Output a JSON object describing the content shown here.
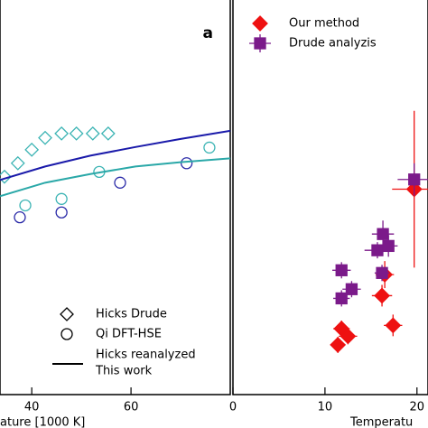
{
  "chart_data": [
    {
      "type": "scatter",
      "panel_label": "a",
      "xlabel": "ature [1000 K]",
      "xlim": [
        33.6,
        80
      ],
      "xticks": [
        40,
        60
      ],
      "ylim": [
        0,
        7.3
      ],
      "series": [
        {
          "name": "Hicks Drude",
          "marker": "diamond",
          "color": "#3cb4b4",
          "x": [
            34.5,
            37.2,
            40,
            42.7,
            46,
            49,
            52.3,
            55.4
          ],
          "values": [
            4.03,
            4.28,
            4.53,
            4.75,
            4.83,
            4.83,
            4.83,
            4.83
          ]
        },
        {
          "name": "Qi DFT-HSE",
          "marker": "circle",
          "color": "#3cb4b4",
          "point_colors": [
            "#3cb4b4",
            "#3cb4b4",
            "#3cb4b4",
            "#3cb4b4",
            "#2a2aa8",
            "#2a2aa8",
            "#2a2aa8",
            "#2a2aa8"
          ],
          "x": [
            38.7,
            46,
            53.6,
            75.8,
            37.6,
            46,
            57.8,
            71.2
          ],
          "values": [
            3.5,
            3.62,
            4.12,
            4.57,
            3.28,
            3.37,
            3.92,
            4.28
          ]
        },
        {
          "name": "Hicks reanalyzed",
          "marker": "line",
          "color": "#1a1aaa",
          "x": [
            33.6,
            42.7,
            51.8,
            60.9,
            70,
            80
          ],
          "values": [
            3.97,
            4.22,
            4.42,
            4.58,
            4.73,
            4.88
          ]
        },
        {
          "name": "This work",
          "marker": "line",
          "color": "#2aa8a8",
          "x": [
            33.6,
            42.7,
            51.8,
            60.9,
            70,
            80
          ],
          "values": [
            3.67,
            3.92,
            4.08,
            4.22,
            4.3,
            4.37
          ]
        }
      ]
    },
    {
      "type": "errorbar",
      "xlabel": "Temperatu",
      "xlim": [
        0,
        21.2
      ],
      "xticks": [
        0,
        10,
        20
      ],
      "ylim": [
        0,
        7.3
      ],
      "series": [
        {
          "name": "Our method",
          "marker": "diamond",
          "color": "#ee1111",
          "x": [
            11.4,
            11.8,
            12.5,
            17.4,
            16.2,
            16.5,
            19.7
          ],
          "values": [
            0.92,
            1.22,
            1.08,
            1.28,
            1.83,
            2.22,
            3.8
          ],
          "xerr": [
            0.8,
            0.9,
            1.0,
            1.0,
            1.1,
            1.0,
            2.4
          ],
          "yerr": [
            0.15,
            0.15,
            0.15,
            0.2,
            0.2,
            0.25,
            1.45
          ]
        },
        {
          "name": "Drude analyzis",
          "marker": "square",
          "color": "#7b1a8a",
          "x": [
            11.8,
            12.9,
            11.8,
            16.3,
            15.7,
            16.9,
            16.2,
            19.7
          ],
          "values": [
            2.3,
            1.95,
            1.78,
            2.97,
            2.67,
            2.75,
            2.25,
            3.98
          ],
          "xerr": [
            1.0,
            1.0,
            0.9,
            1.2,
            1.4,
            1.0,
            0.8,
            1.8
          ],
          "yerr": [
            0.15,
            0.15,
            0.15,
            0.25,
            0.15,
            0.2,
            0.15,
            0.3
          ]
        }
      ]
    }
  ]
}
